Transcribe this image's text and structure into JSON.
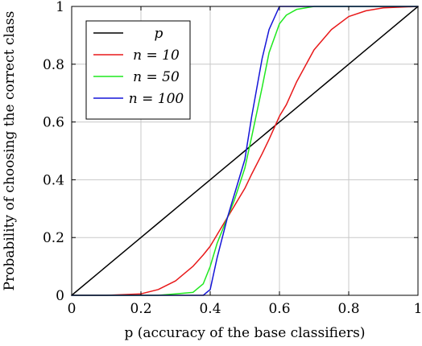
{
  "chart_data": {
    "type": "line",
    "xlabel": "p (accuracy of the base classifiers)",
    "ylabel": "Probability of choosing the correct class",
    "xlim": [
      0,
      1
    ],
    "ylim": [
      0,
      1
    ],
    "x_ticks": [
      "0",
      "0.2",
      "0.4",
      "0.6",
      "0.8",
      "1"
    ],
    "y_ticks": [
      "0",
      "0.2",
      "0.4",
      "0.6",
      "0.8",
      "1"
    ],
    "grid": true,
    "legend_position": "top-left",
    "x": [
      0,
      0.1,
      0.2,
      0.25,
      0.3,
      0.35,
      0.38,
      0.4,
      0.42,
      0.45,
      0.47,
      0.5,
      0.52,
      0.55,
      0.57,
      0.6,
      0.62,
      0.65,
      0.7,
      0.75,
      0.8,
      0.85,
      0.9,
      1
    ],
    "series": [
      {
        "name": "p",
        "color": "#000000",
        "values": [
          0,
          0.1,
          0.2,
          0.25,
          0.3,
          0.35,
          0.38,
          0.4,
          0.42,
          0.45,
          0.47,
          0.5,
          0.52,
          0.55,
          0.57,
          0.6,
          0.62,
          0.65,
          0.7,
          0.75,
          0.8,
          0.85,
          0.9,
          1
        ]
      },
      {
        "name": "n = 10",
        "color": "#e8191a",
        "values": [
          0,
          0,
          0.005,
          0.02,
          0.05,
          0.1,
          0.14,
          0.17,
          0.21,
          0.27,
          0.31,
          0.37,
          0.42,
          0.49,
          0.54,
          0.62,
          0.66,
          0.74,
          0.85,
          0.92,
          0.965,
          0.985,
          0.995,
          1
        ]
      },
      {
        "name": "n = 50",
        "color": "#1fe81f",
        "values": [
          0,
          0,
          0,
          0,
          0.005,
          0.01,
          0.04,
          0.1,
          0.18,
          0.27,
          0.33,
          0.44,
          0.55,
          0.72,
          0.84,
          0.94,
          0.97,
          0.99,
          1,
          1,
          1,
          1,
          1,
          1
        ]
      },
      {
        "name": "n = 100",
        "color": "#1515d8",
        "values": [
          0,
          0,
          0,
          0,
          0,
          0,
          0,
          0.02,
          0.13,
          0.27,
          0.35,
          0.47,
          0.62,
          0.82,
          0.92,
          1,
          1,
          1,
          1,
          1,
          1,
          1,
          1,
          1
        ]
      }
    ]
  }
}
